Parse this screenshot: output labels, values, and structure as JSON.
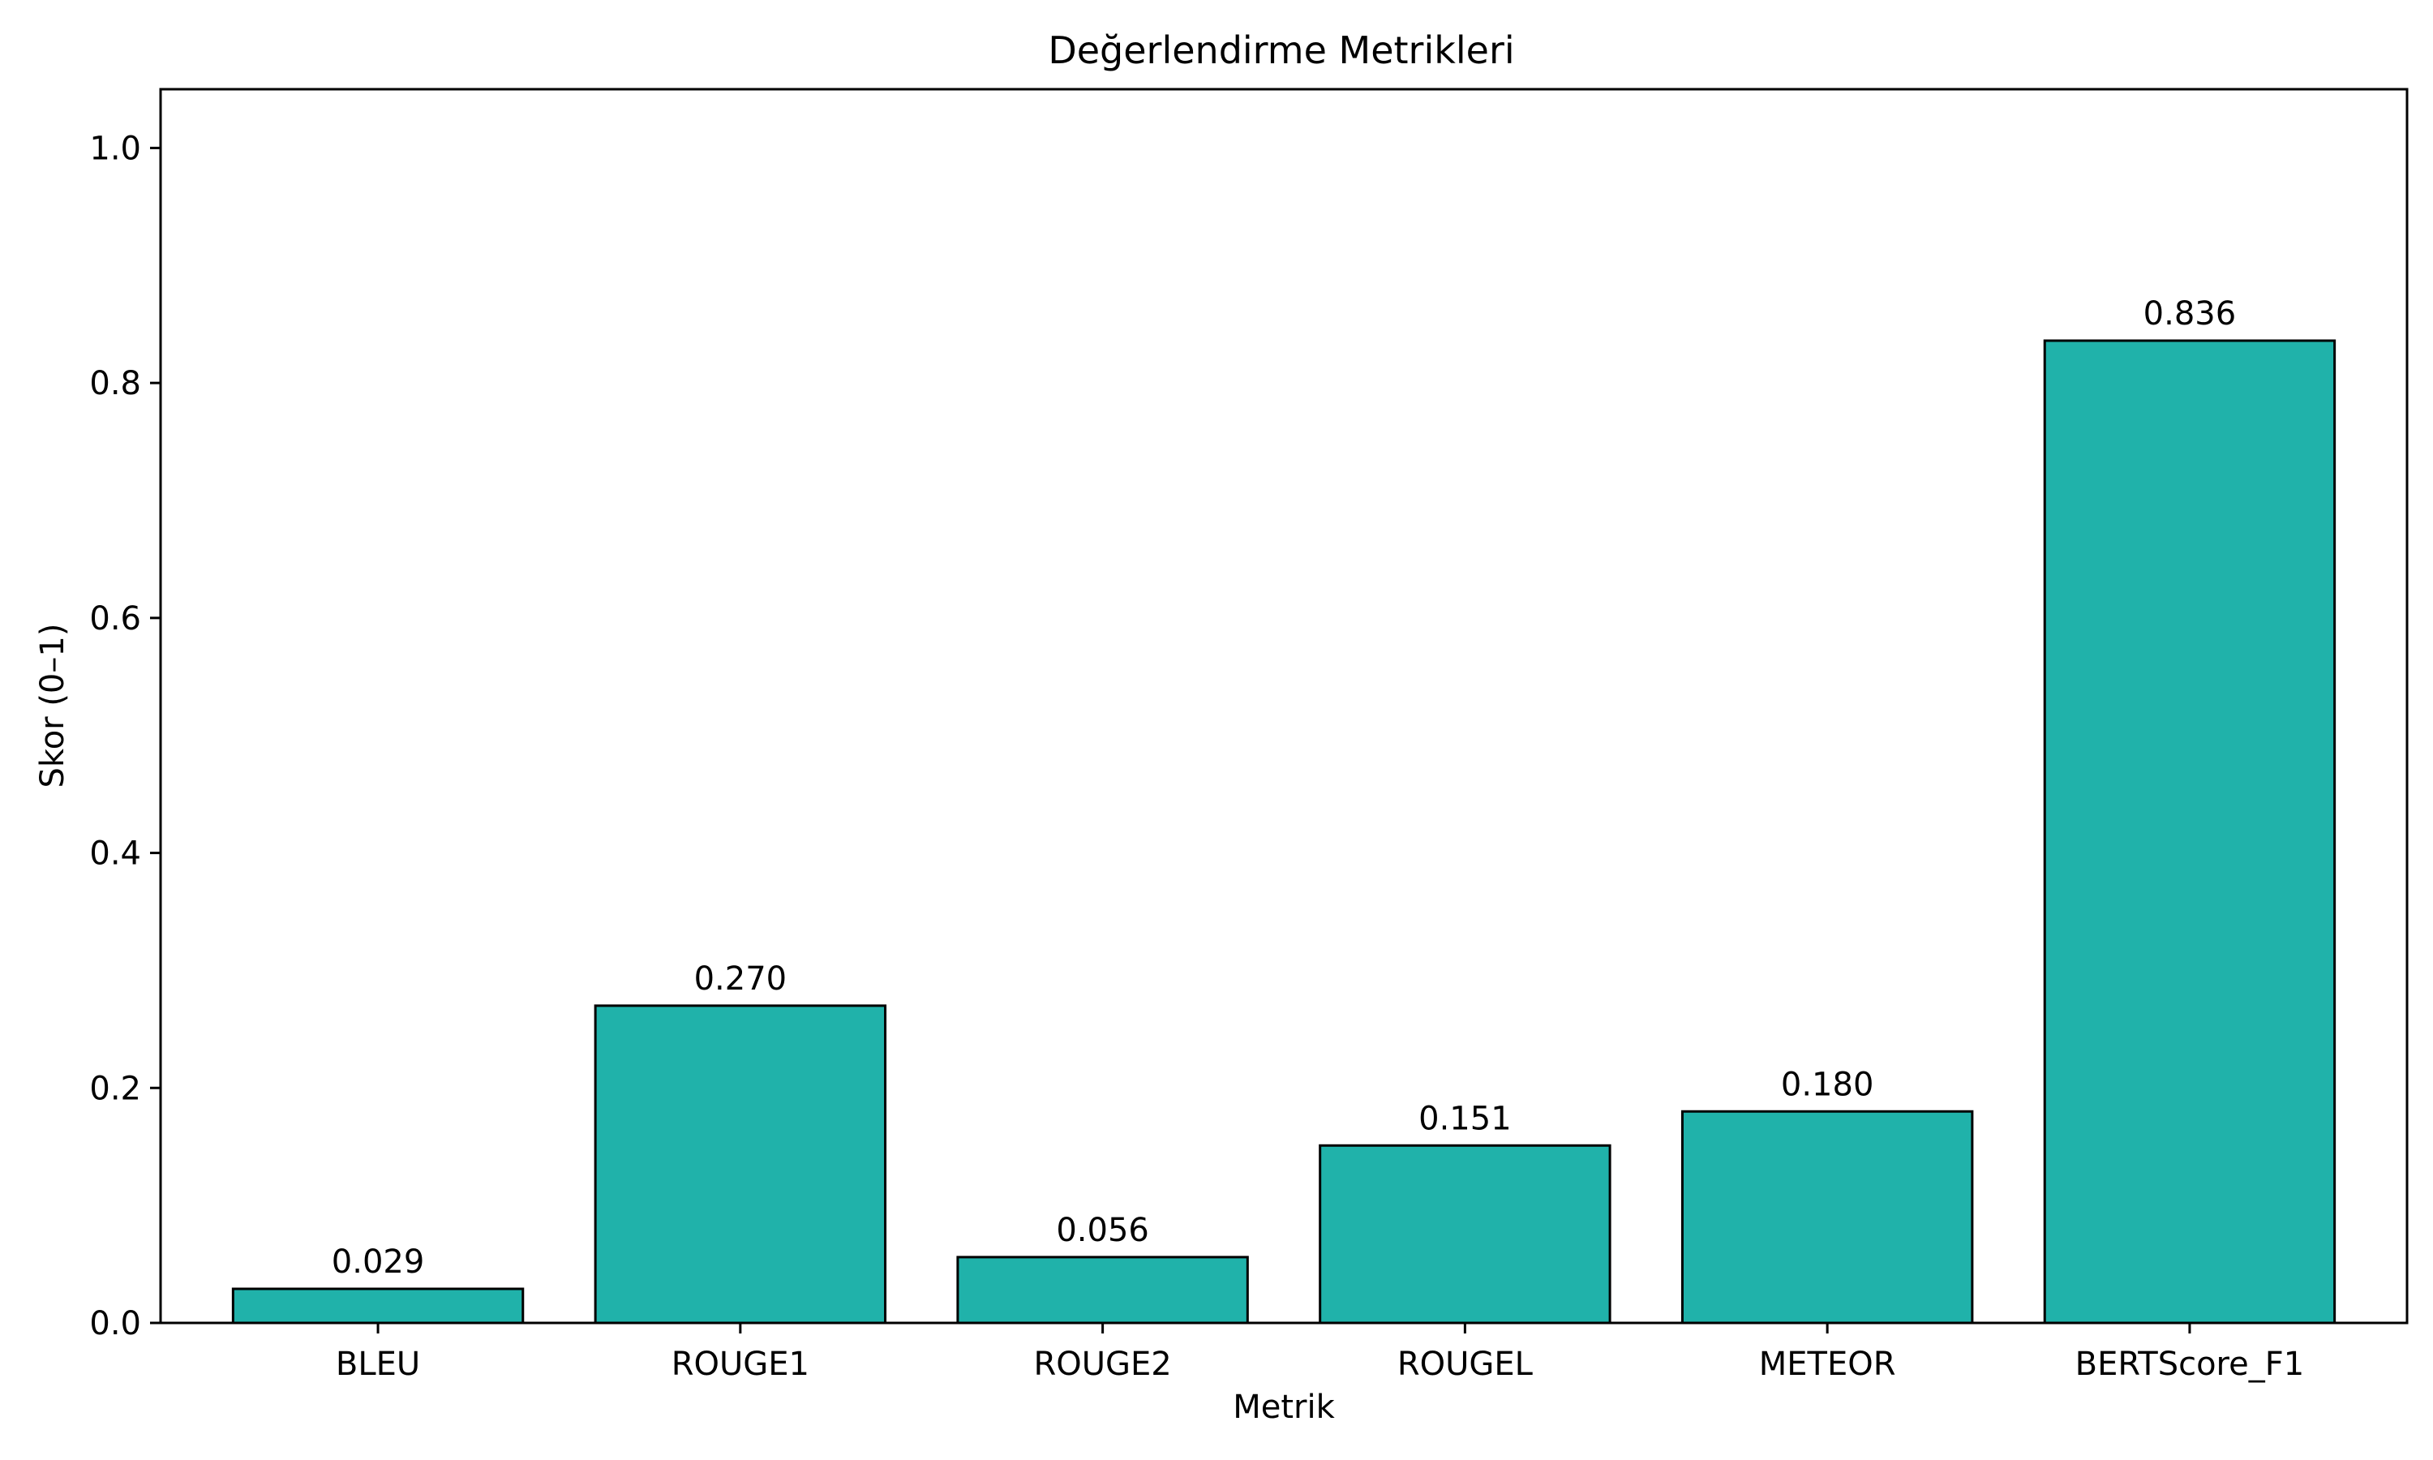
{
  "chart_data": {
    "type": "bar",
    "title": "Değerlendirme Metrikleri",
    "xlabel": "Metrik",
    "ylabel": "Skor (0–1)",
    "categories": [
      "BLEU",
      "ROUGE1",
      "ROUGE2",
      "ROUGEL",
      "METEOR",
      "BERTScore_F1"
    ],
    "values": [
      0.029,
      0.27,
      0.056,
      0.151,
      0.18,
      0.836
    ],
    "value_labels": [
      "0.029",
      "0.270",
      "0.056",
      "0.151",
      "0.180",
      "0.836"
    ],
    "ylim": [
      0,
      1.05
    ],
    "yticks": [
      0.0,
      0.2,
      0.4,
      0.6,
      0.8,
      1.0
    ],
    "ytick_labels": [
      "0.0",
      "0.2",
      "0.4",
      "0.6",
      "0.8",
      "1.0"
    ],
    "grid": false,
    "legend": "none",
    "bar_color": "#20b2aa",
    "bar_edge_color": "#000000"
  }
}
